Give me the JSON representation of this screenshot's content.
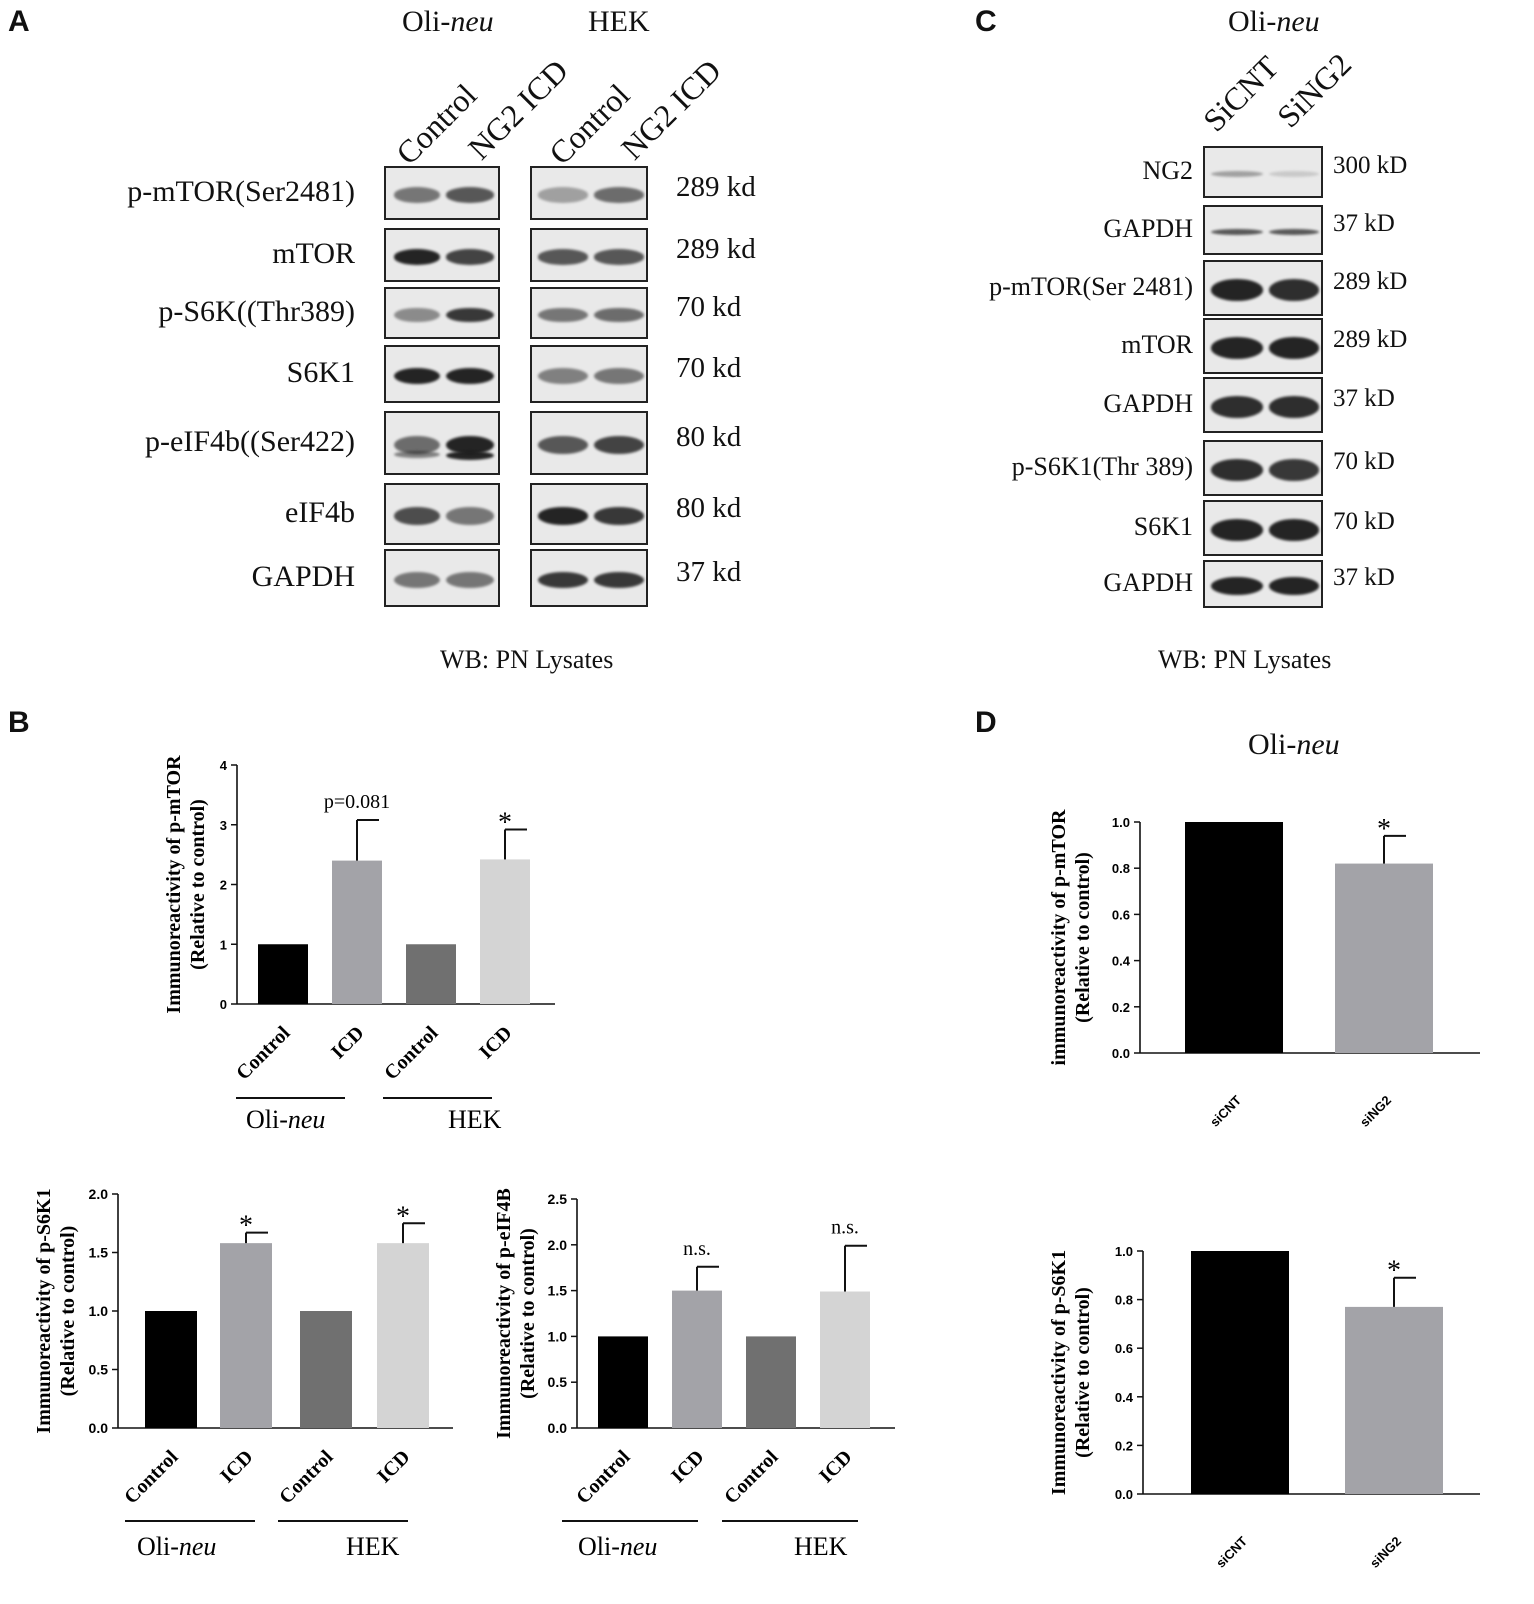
{
  "panels": {
    "A": {
      "letter": "A",
      "header_left_plain": "Oli-",
      "header_left_italic": "neu",
      "header_right": "HEK",
      "lanes": [
        "Control",
        "NG2 ICD",
        "Control",
        "NG2 ICD"
      ],
      "rows": [
        {
          "protein": "p-mTOR(Ser2481)",
          "mw": "289 kd"
        },
        {
          "protein": "mTOR",
          "mw": "289 kd"
        },
        {
          "protein": "p-S6K((Thr389)",
          "mw": "70 kd"
        },
        {
          "protein": "S6K1",
          "mw": "70 kd"
        },
        {
          "protein": "p-eIF4b((Ser422)",
          "mw": "80 kd"
        },
        {
          "protein": "eIF4b",
          "mw": "80 kd"
        },
        {
          "protein": "GAPDH",
          "mw": "37 kd"
        }
      ],
      "footer": "WB: PN Lysates"
    },
    "C": {
      "letter": "C",
      "header_plain": "Oli-",
      "header_italic": "neu",
      "lanes": [
        "SiCNT",
        "SiNG2"
      ],
      "rows": [
        {
          "protein": "NG2",
          "mw": "300 kD"
        },
        {
          "protein": "GAPDH",
          "mw": "37 kD"
        },
        {
          "protein": "p-mTOR(Ser 2481)",
          "mw": "289 kD"
        },
        {
          "protein": "mTOR",
          "mw": "289 kD"
        },
        {
          "protein": "GAPDH",
          "mw": "37 kD"
        },
        {
          "protein": "p-S6K1(Thr 389)",
          "mw": "70 kD"
        },
        {
          "protein": "S6K1",
          "mw": "70 kD"
        },
        {
          "protein": "GAPDH",
          "mw": "37 kD"
        }
      ],
      "footer": "WB: PN Lysates"
    },
    "B": {
      "letter": "B"
    },
    "D": {
      "letter": "D",
      "title_plain": "Oli-",
      "title_italic": "neu"
    }
  },
  "chart_data": [
    {
      "id": "B-pmTOR",
      "type": "bar",
      "ylabel": "Immunoreactivity of p-mTOR",
      "ylabel2": "(Relative to control)",
      "categories": [
        "Control",
        "ICD",
        "Control",
        "ICD"
      ],
      "values": [
        1.0,
        2.4,
        1.0,
        2.42
      ],
      "errors": [
        0,
        0.68,
        0,
        0.5
      ],
      "annotations": [
        "",
        "p=0.081",
        "",
        "*"
      ],
      "bar_colors": [
        "#000000",
        "#a3a3a8",
        "#707070",
        "#d4d4d4"
      ],
      "ylim": [
        0,
        4
      ],
      "yticks": [
        "0",
        "1",
        "2",
        "3",
        "4"
      ],
      "groups": [
        {
          "label_plain": "Oli-",
          "label_italic": "neu"
        },
        {
          "label_plain": "HEK",
          "label_italic": ""
        }
      ]
    },
    {
      "id": "B-pS6K1",
      "type": "bar",
      "ylabel": "Immunoreactivity of p-S6K1",
      "ylabel2": "(Relative to control)",
      "categories": [
        "Control",
        "ICD",
        "Control",
        "ICD"
      ],
      "values": [
        1.0,
        1.58,
        1.0,
        1.58
      ],
      "errors": [
        0,
        0.09,
        0,
        0.17
      ],
      "annotations": [
        "",
        "*",
        "",
        "*"
      ],
      "bar_colors": [
        "#000000",
        "#a3a3a8",
        "#707070",
        "#d4d4d4"
      ],
      "ylim": [
        0,
        2.0
      ],
      "yticks": [
        "0.0",
        "0.5",
        "1.0",
        "1.5",
        "2.0"
      ],
      "groups": [
        {
          "label_plain": "Oli-",
          "label_italic": "neu"
        },
        {
          "label_plain": "HEK",
          "label_italic": ""
        }
      ]
    },
    {
      "id": "B-peIF4B",
      "type": "bar",
      "ylabel": "Immunoreactivity of p-eIF4B",
      "ylabel2": "(Relative to control)",
      "categories": [
        "Control",
        "ICD",
        "Control",
        "ICD"
      ],
      "values": [
        1.0,
        1.5,
        1.0,
        1.49
      ],
      "errors": [
        0,
        0.26,
        0,
        0.5
      ],
      "annotations": [
        "",
        "n.s.",
        "",
        "n.s."
      ],
      "bar_colors": [
        "#000000",
        "#a3a3a8",
        "#707070",
        "#d4d4d4"
      ],
      "ylim": [
        0,
        2.5
      ],
      "yticks": [
        "0.0",
        "0.5",
        "1.0",
        "1.5",
        "2.0",
        "2.5"
      ],
      "groups": [
        {
          "label_plain": "Oli-",
          "label_italic": "neu"
        },
        {
          "label_plain": "HEK",
          "label_italic": ""
        }
      ]
    },
    {
      "id": "D-pmTOR",
      "type": "bar",
      "ylabel": "immunoreactivity of p-mTOR",
      "ylabel2": "(Relative to control)",
      "categories": [
        "siCNT",
        "siNG2"
      ],
      "values": [
        1.0,
        0.82
      ],
      "errors": [
        0,
        0.12
      ],
      "annotations": [
        "",
        "*"
      ],
      "bar_colors": [
        "#000000",
        "#a3a3a8"
      ],
      "ylim": [
        0,
        1.0
      ],
      "yticks": [
        "0.0",
        "0.2",
        "0.4",
        "0.6",
        "0.8",
        "1.0"
      ],
      "groups": []
    },
    {
      "id": "D-pS6K1",
      "type": "bar",
      "ylabel": "Immunoreactivity of p-S6K1",
      "ylabel2": "(Relative to control)",
      "categories": [
        "siCNT",
        "siNG2"
      ],
      "values": [
        1.0,
        0.77
      ],
      "errors": [
        0,
        0.12
      ],
      "annotations": [
        "",
        "*"
      ],
      "bar_colors": [
        "#000000",
        "#a3a3a8"
      ],
      "ylim": [
        0,
        1.0
      ],
      "yticks": [
        "0.0",
        "0.2",
        "0.4",
        "0.6",
        "0.8",
        "1.0"
      ],
      "groups": []
    }
  ]
}
